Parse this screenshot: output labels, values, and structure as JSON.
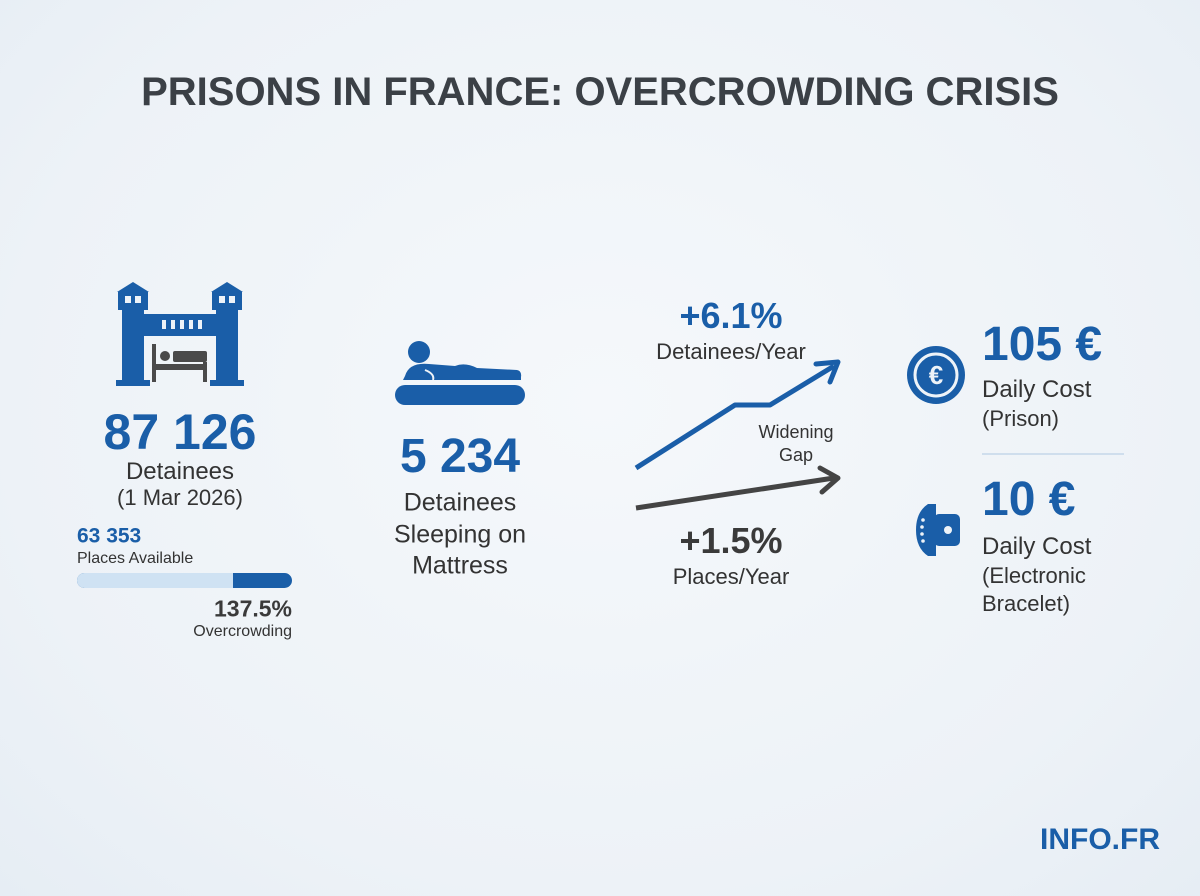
{
  "title": "PRISONS IN FRANCE: OVERCROWDING CRISIS",
  "colors": {
    "accent": "#1a5ea8",
    "text": "#333333",
    "bar_track": "#cfe2f3",
    "background": "#eef3f8"
  },
  "detainees": {
    "icon": "prison-with-bed-icon",
    "value": "87 126",
    "label": "Detainees",
    "date": "(1 Mar 2026)",
    "places_value": "63 353",
    "places_label": "Places Available",
    "capacity_share_of_detainees": 0.727,
    "overcrowding_value": "137.5%",
    "overcrowding_label": "Overcrowding"
  },
  "mattress": {
    "icon": "person-on-mattress-icon",
    "value": "5 234",
    "label_lines": [
      "Detainees",
      "Sleeping on",
      "Mattress"
    ]
  },
  "trends": {
    "detainees_growth": "+6.1%",
    "detainees_label": "Detainees/Year",
    "gap_label_lines": [
      "Widening",
      "Gap"
    ],
    "places_growth": "+1.5%",
    "places_label": "Places/Year"
  },
  "costs": [
    {
      "icon": "euro-coin-icon",
      "value": "105 €",
      "label_lines": [
        "Daily Cost",
        "(Prison)"
      ]
    },
    {
      "icon": "electronic-bracelet-icon",
      "value": "10 €",
      "label_lines": [
        "Daily Cost",
        "(Electronic",
        "Bracelet)"
      ]
    }
  ],
  "brand": "INFO.FR"
}
